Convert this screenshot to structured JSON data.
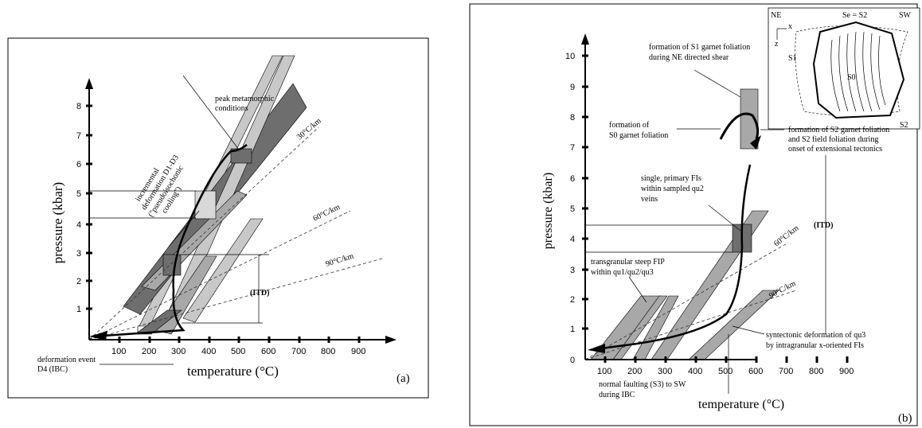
{
  "panel_a": {
    "label": "(a)",
    "ylabel": "pressure (kbar)",
    "xlabel": "temperature (°C)",
    "yticks": [
      "1",
      "2",
      "3",
      "4",
      "5",
      "6",
      "7",
      "8"
    ],
    "xticks": [
      "100",
      "200",
      "300",
      "400",
      "500",
      "600",
      "700",
      "800",
      "900"
    ],
    "gradients": [
      "30°C/km",
      "60°C/km",
      "90°C/km"
    ],
    "notes": {
      "peak": [
        "peak metamorphic",
        "conditions"
      ],
      "incremental": [
        "incremental",
        "deformation D1-D3",
        "(\"pseudoisochonic",
        "cooling\")"
      ],
      "itd": "(ITD)",
      "deformation_d4": [
        "deformation event",
        "D4 (IBC)"
      ]
    }
  },
  "panel_b": {
    "label": "(b)",
    "ylabel": "pressure (kbar)",
    "xlabel": "temperature (°C)",
    "yticks": [
      "0",
      "1",
      "2",
      "3",
      "4",
      "5",
      "6",
      "7",
      "8",
      "9",
      "10"
    ],
    "xticks": [
      "100",
      "200",
      "300",
      "400",
      "500",
      "600",
      "700",
      "800",
      "900"
    ],
    "gradients": [
      "60°C/km",
      "90°C/km"
    ],
    "notes": {
      "s1": [
        "formation of S1 garnet foliation",
        "during NE directed shear"
      ],
      "s0": [
        "formation of",
        "S0 garnet foliation"
      ],
      "s2": [
        "formation of S2 garnet foliation",
        "and S2 field foliation during",
        "onset of extensional tectonics"
      ],
      "single": [
        "single, primary FIs",
        "within sampled qu2",
        "veins"
      ],
      "itd": "(ITD)",
      "transgranular": [
        "transgranular steep FIP",
        "within qu1/qu2/qu3"
      ],
      "syntectonic": [
        "syntectonic deformation of qu3",
        "by intragranular x-oriented FIs"
      ],
      "normal": [
        "normal faulting (S3) to SW",
        "during IBC"
      ]
    },
    "inset": {
      "ne": "NE",
      "sw": "SW",
      "se_s2": "Se = S2",
      "x": "x",
      "z": "z",
      "s1": "S1",
      "s0": "S0",
      "s2": "S2"
    }
  }
}
